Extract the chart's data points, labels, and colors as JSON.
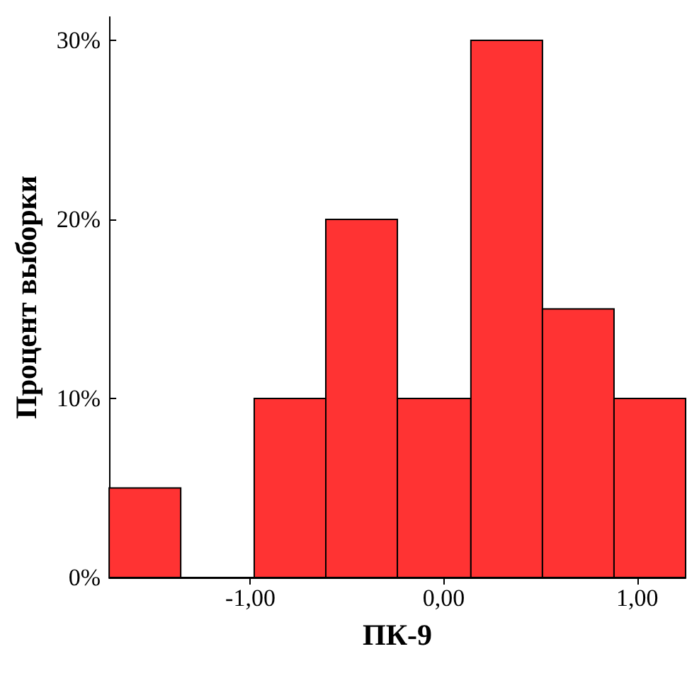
{
  "chart_data": {
    "type": "histogram",
    "xlabel": "ПК-9",
    "ylabel": "Процент выборки",
    "bins": [
      -1.73,
      -1.36,
      -0.98,
      -0.61,
      -0.24,
      0.14,
      0.51,
      0.88,
      1.25
    ],
    "values": [
      5,
      0,
      10,
      20,
      10,
      30,
      15,
      10
    ],
    "color": "#ff3333",
    "xlim": [
      -1.73,
      1.25
    ],
    "xticks": [
      {
        "value": -1,
        "label": "-1,00"
      },
      {
        "value": 0,
        "label": "0,00"
      },
      {
        "value": 1,
        "label": "1,00"
      }
    ],
    "ylim": [
      0,
      31.3
    ],
    "yticks": [
      {
        "value": 0,
        "label": "0%"
      },
      {
        "value": 10,
        "label": "10%"
      },
      {
        "value": 20,
        "label": "20%"
      },
      {
        "value": 30,
        "label": "30%"
      }
    ],
    "grid": false
  }
}
